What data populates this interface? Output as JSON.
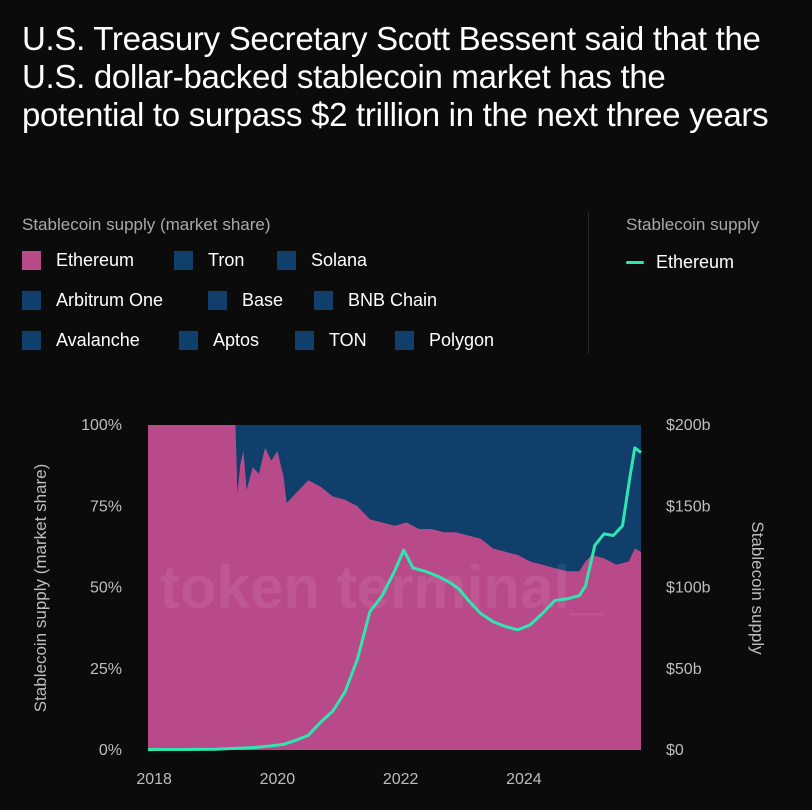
{
  "headline": "U.S. Treasury Secretary Scott Bessent said that the U.S. dollar-backed stablecoin market has the potential to surpass $2 trillion in the next three years",
  "legend_share_title": "Stablecoin supply (market share)",
  "legend_supply_title": "Stablecoin supply",
  "legend_share_items": [
    {
      "label": "Ethereum",
      "color": "#b94a8a"
    },
    {
      "label": "Tron",
      "color": "#0f3f6a"
    },
    {
      "label": "Solana",
      "color": "#0f3f6a"
    },
    {
      "label": "Arbitrum One",
      "color": "#0f3f6a"
    },
    {
      "label": "Base",
      "color": "#0f3f6a"
    },
    {
      "label": "BNB Chain",
      "color": "#0f3f6a"
    },
    {
      "label": "Avalanche",
      "color": "#0f3f6a"
    },
    {
      "label": "Aptos",
      "color": "#0f3f6a"
    },
    {
      "label": "TON",
      "color": "#0f3f6a"
    },
    {
      "label": "Polygon",
      "color": "#0f3f6a"
    }
  ],
  "legend_supply_items": [
    {
      "label": "Ethereum",
      "color": "#2ee6b0"
    }
  ],
  "watermark": "token terminal_",
  "chart_data": {
    "type": "area",
    "title": "",
    "xlabel": "",
    "ylabel": "Stablecoin supply (market share)",
    "y2label": "Stablecoin supply",
    "x_ticks": [
      "2018",
      "2020",
      "2022",
      "2024"
    ],
    "y_ticks": [
      "0%",
      "25%",
      "50%",
      "75%",
      "100%"
    ],
    "y2_ticks": [
      "$0",
      "$50b",
      "$100b",
      "$150b",
      "$200b"
    ],
    "ylim": [
      0,
      100
    ],
    "y2lim": [
      0,
      200
    ],
    "xlim": [
      2017.9,
      2025.9
    ],
    "area_series": {
      "name": "Ethereum",
      "unit": "% market share",
      "color": "#b94a8a",
      "other_color": "#0f3f6a",
      "x": [
        2017.9,
        2019.1,
        2019.25,
        2019.32,
        2019.35,
        2019.4,
        2019.45,
        2019.5,
        2019.6,
        2019.7,
        2019.8,
        2019.9,
        2020.0,
        2020.1,
        2020.15,
        2020.3,
        2020.5,
        2020.7,
        2020.9,
        2021.1,
        2021.3,
        2021.5,
        2021.7,
        2021.9,
        2022.1,
        2022.3,
        2022.5,
        2022.7,
        2022.9,
        2023.1,
        2023.3,
        2023.5,
        2023.7,
        2023.9,
        2024.1,
        2024.3,
        2024.5,
        2024.7,
        2024.9,
        2025.0,
        2025.1,
        2025.3,
        2025.5,
        2025.7,
        2025.8,
        2025.9
      ],
      "y": [
        100,
        100,
        100,
        100,
        79,
        88,
        92,
        80,
        87,
        85,
        93,
        89,
        92,
        84,
        76,
        79,
        83,
        81,
        78,
        77,
        75,
        71,
        70,
        69,
        70,
        68,
        68,
        67,
        67,
        66,
        65,
        62,
        61,
        60,
        58,
        57,
        56,
        55,
        55,
        58,
        60,
        59,
        57,
        58,
        62,
        61
      ]
    },
    "line_series": {
      "name": "Ethereum",
      "unit": "$b",
      "color": "#2ee6b0",
      "x": [
        2017.9,
        2018.5,
        2019.0,
        2019.3,
        2019.6,
        2019.9,
        2020.1,
        2020.3,
        2020.5,
        2020.7,
        2020.9,
        2021.1,
        2021.3,
        2021.5,
        2021.7,
        2021.9,
        2022.05,
        2022.2,
        2022.4,
        2022.6,
        2022.8,
        2022.95,
        2023.1,
        2023.3,
        2023.5,
        2023.7,
        2023.9,
        2024.1,
        2024.3,
        2024.5,
        2024.7,
        2024.9,
        2025.0,
        2025.15,
        2025.3,
        2025.45,
        2025.6,
        2025.72,
        2025.8,
        2025.9
      ],
      "y": [
        0.3,
        0.3,
        0.5,
        1,
        1.5,
        2.5,
        3.5,
        6,
        9,
        17,
        24,
        36,
        56,
        85,
        95,
        110,
        123,
        112,
        110,
        107,
        103,
        99,
        92,
        84,
        79,
        76,
        74,
        77,
        84,
        92,
        93,
        95,
        101,
        126,
        133,
        132,
        138,
        168,
        186,
        183
      ]
    }
  }
}
